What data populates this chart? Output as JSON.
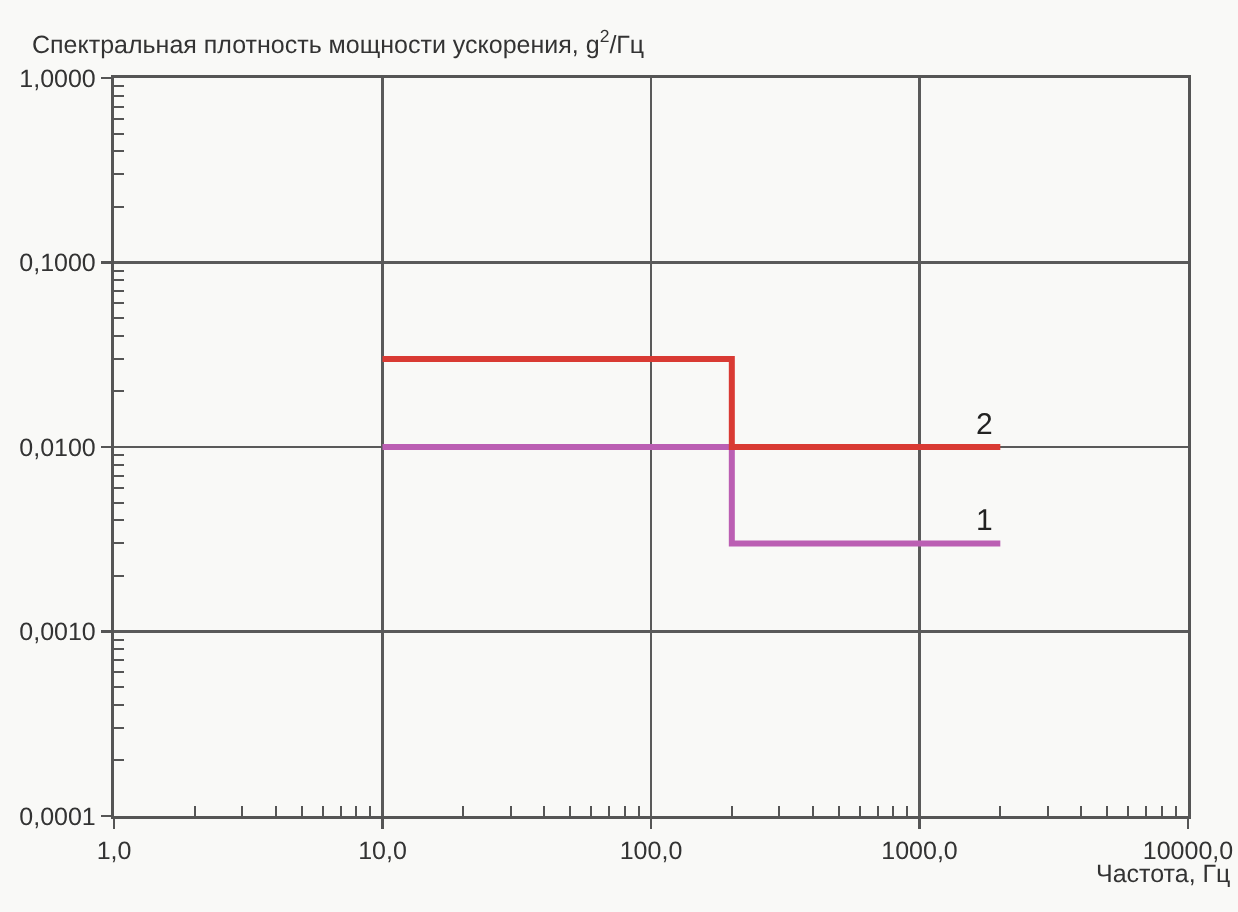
{
  "chart_data": {
    "type": "step",
    "ylabel": "Спектральная плотность мощности ускорения, g$^{2}$/Гц",
    "xlabel": "Частота, Гц",
    "x": [
      10,
      200,
      2000
    ],
    "series": [
      {
        "name": "1",
        "color": "#bb5fb3",
        "values": [
          0.01,
          0.003,
          0.003
        ]
      },
      {
        "name": "2",
        "color": "#d93a33",
        "values": [
          0.03,
          0.01,
          0.01
        ]
      }
    ],
    "xlim": [
      1,
      10000
    ],
    "ylim": [
      0.0001,
      1
    ],
    "xticks": [
      {
        "value": 1,
        "label": "1,0"
      },
      {
        "value": 2,
        "label": null
      },
      {
        "value": 3,
        "label": null
      },
      {
        "value": 4,
        "label": null
      },
      {
        "value": 5,
        "label": null
      },
      {
        "value": 6,
        "label": null
      },
      {
        "value": 7,
        "label": null
      },
      {
        "value": 8,
        "label": null
      },
      {
        "value": 9,
        "label": null
      },
      {
        "value": 10,
        "label": "10,0"
      },
      {
        "value": 20,
        "label": null
      },
      {
        "value": 30,
        "label": null
      },
      {
        "value": 40,
        "label": null
      },
      {
        "value": 50,
        "label": null
      },
      {
        "value": 60,
        "label": null
      },
      {
        "value": 70,
        "label": null
      },
      {
        "value": 80,
        "label": null
      },
      {
        "value": 90,
        "label": null
      },
      {
        "value": 100,
        "label": "100,0"
      },
      {
        "value": 200,
        "label": null
      },
      {
        "value": 300,
        "label": null
      },
      {
        "value": 400,
        "label": null
      },
      {
        "value": 500,
        "label": null
      },
      {
        "value": 600,
        "label": null
      },
      {
        "value": 700,
        "label": null
      },
      {
        "value": 800,
        "label": null
      },
      {
        "value": 900,
        "label": null
      },
      {
        "value": 1000,
        "label": "1000,0"
      },
      {
        "value": 2000,
        "label": null
      },
      {
        "value": 3000,
        "label": null
      },
      {
        "value": 4000,
        "label": null
      },
      {
        "value": 5000,
        "label": null
      },
      {
        "value": 6000,
        "label": null
      },
      {
        "value": 7000,
        "label": null
      },
      {
        "value": 8000,
        "label": null
      },
      {
        "value": 9000,
        "label": null
      },
      {
        "value": 10000,
        "label": "10000,0"
      }
    ],
    "yticks": [
      {
        "value": 0.0001,
        "label": "0,0001"
      },
      {
        "value": 0.0002,
        "label": null
      },
      {
        "value": 0.0003,
        "label": null
      },
      {
        "value": 0.0004,
        "label": null
      },
      {
        "value": 0.0005,
        "label": null
      },
      {
        "value": 0.0006,
        "label": null
      },
      {
        "value": 0.0007,
        "label": null
      },
      {
        "value": 0.0008,
        "label": null
      },
      {
        "value": 0.0009,
        "label": null
      },
      {
        "value": 0.001,
        "label": "0,0010"
      },
      {
        "value": 0.002,
        "label": null
      },
      {
        "value": 0.003,
        "label": null
      },
      {
        "value": 0.004,
        "label": null
      },
      {
        "value": 0.005,
        "label": null
      },
      {
        "value": 0.006,
        "label": null
      },
      {
        "value": 0.007,
        "label": null
      },
      {
        "value": 0.008,
        "label": null
      },
      {
        "value": 0.009,
        "label": null
      },
      {
        "value": 0.01,
        "label": "0,0100"
      },
      {
        "value": 0.02,
        "label": null
      },
      {
        "value": 0.03,
        "label": null
      },
      {
        "value": 0.04,
        "label": null
      },
      {
        "value": 0.05,
        "label": null
      },
      {
        "value": 0.06,
        "label": null
      },
      {
        "value": 0.07,
        "label": null
      },
      {
        "value": 0.08,
        "label": null
      },
      {
        "value": 0.09,
        "label": null
      },
      {
        "value": 0.1,
        "label": "0,1000"
      },
      {
        "value": 0.2,
        "label": null
      },
      {
        "value": 0.3,
        "label": null
      },
      {
        "value": 0.4,
        "label": null
      },
      {
        "value": 0.5,
        "label": null
      },
      {
        "value": 0.6,
        "label": null
      },
      {
        "value": 0.7,
        "label": null
      },
      {
        "value": 0.8,
        "label": null
      },
      {
        "value": 0.9,
        "label": null
      },
      {
        "value": 1,
        "label": "1,0000"
      }
    ],
    "log": "xy",
    "grid": true,
    "legend": false,
    "marker": "none",
    "line_style": "solid"
  }
}
